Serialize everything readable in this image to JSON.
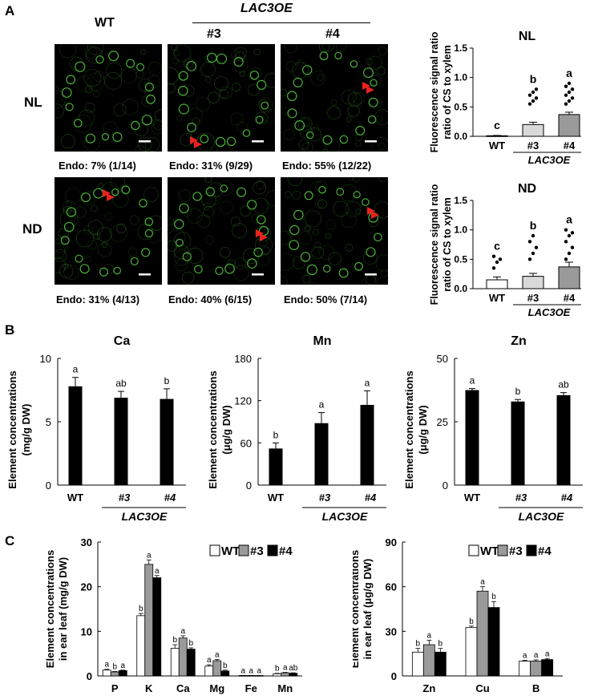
{
  "panel_a": {
    "letter": "A",
    "col_wt": "WT",
    "genotype_group": "LAC3OE",
    "col_3": "#3",
    "col_4": "#4",
    "row_nl": "NL",
    "row_nd": "ND",
    "captions_nl": [
      "Endo: 7% (1/14)",
      "Endo: 31% (9/29)",
      "Endo: 55% (12/22)"
    ],
    "captions_nd": [
      "Endo: 31% (4/13)",
      "Endo: 40% (6/15)",
      "Endo: 50% (7/14)"
    ],
    "image_fill_color": "#000000",
    "ring_color": "#4caf3a",
    "arrow_color": "#e8231f"
  },
  "panel_b": {
    "letter": "B"
  },
  "panel_c": {
    "letter": "C"
  },
  "chart_data": [
    {
      "id": "a-nl",
      "type": "bar",
      "title": "NL",
      "ylabel": "Fluorescence signal ratio of CS to xylem",
      "categories": [
        "WT",
        "#3",
        "#4"
      ],
      "group_label": "LAC3OE",
      "values": [
        0.01,
        0.2,
        0.37
      ],
      "errors": [
        0.005,
        0.04,
        0.04
      ],
      "letters": [
        "c",
        "b",
        "a"
      ],
      "bar_colors": [
        "#ffffff",
        "#d9d9d9",
        "#9a9a9a"
      ],
      "ylim": [
        0,
        1.5
      ],
      "yticks": [
        "0.0",
        "0.5",
        "1.0",
        "1.5"
      ],
      "scatter": [
        [],
        [
          0.55,
          0.6,
          0.65,
          0.7,
          0.75,
          0.8
        ],
        [
          0.55,
          0.6,
          0.65,
          0.7,
          0.75,
          0.8,
          0.85,
          0.9
        ]
      ]
    },
    {
      "id": "a-nd",
      "type": "bar",
      "title": "ND",
      "ylabel": "Fluorescence signal ratio of CS to xylem",
      "categories": [
        "WT",
        "#3",
        "#4"
      ],
      "group_label": "LAC3OE",
      "values": [
        0.15,
        0.21,
        0.37
      ],
      "errors": [
        0.05,
        0.05,
        0.08
      ],
      "letters": [
        "c",
        "b",
        "a"
      ],
      "bar_colors": [
        "#ffffff",
        "#d9d9d9",
        "#9a9a9a"
      ],
      "ylim": [
        0,
        1.5
      ],
      "yticks": [
        "0.0",
        "0.5",
        "1.0",
        "1.5"
      ],
      "scatter": [
        [
          0.35,
          0.45,
          0.5,
          0.55
        ],
        [
          0.5,
          0.6,
          0.7,
          0.8,
          0.9
        ],
        [
          0.5,
          0.6,
          0.7,
          0.8,
          0.9,
          0.95,
          1.0
        ]
      ]
    },
    {
      "id": "b-ca",
      "type": "bar",
      "title": "Ca",
      "ylabel_line1": "Element concentrations",
      "ylabel_line2": "(mg/g DW)",
      "categories": [
        "WT",
        "#3",
        "#4"
      ],
      "group_label": "LAC3OE",
      "values": [
        7.8,
        6.9,
        6.8
      ],
      "errors": [
        0.7,
        0.5,
        0.8
      ],
      "letters": [
        "a",
        "ab",
        "b"
      ],
      "ylim": [
        0,
        10
      ],
      "yticks": [
        "0",
        "5",
        "10"
      ],
      "ytick_vals": [
        0,
        5,
        10
      ]
    },
    {
      "id": "b-mn",
      "type": "bar",
      "title": "Mn",
      "ylabel_line1": "Element concentrations",
      "ylabel_line2": "(μg/g DW)",
      "categories": [
        "WT",
        "#3",
        "#4"
      ],
      "group_label": "LAC3OE",
      "values": [
        52,
        88,
        114
      ],
      "errors": [
        8,
        15,
        20
      ],
      "letters": [
        "b",
        "a",
        "a"
      ],
      "ylim": [
        0,
        180
      ],
      "yticks": [
        "0",
        "60",
        "120",
        "180"
      ],
      "ytick_vals": [
        0,
        60,
        120,
        180
      ]
    },
    {
      "id": "b-zn",
      "type": "bar",
      "title": "Zn",
      "ylabel_line1": "Element concentrations",
      "ylabel_line2": "(μg/g DW)",
      "categories": [
        "WT",
        "#3",
        "#4"
      ],
      "group_label": "LAC3OE",
      "values": [
        37.5,
        33,
        35.5
      ],
      "errors": [
        0.6,
        0.8,
        1.0
      ],
      "letters": [
        "a",
        "b",
        "ab"
      ],
      "ylim": [
        0,
        50
      ],
      "yticks": [
        "0",
        "25",
        "50"
      ],
      "ytick_vals": [
        0,
        25,
        50
      ]
    },
    {
      "id": "c-left",
      "type": "bar",
      "ylabel_line1": "Element concentrations",
      "ylabel_line2": "in ear leaf (mg/g DW)",
      "categories": [
        "P",
        "K",
        "Ca",
        "Mg",
        "Fe",
        "Mn"
      ],
      "series": [
        {
          "name": "WT",
          "color": "#ffffff",
          "values": [
            1.3,
            13.5,
            6.2,
            2.2,
            0.1,
            0.5
          ],
          "errors": [
            0.2,
            0.5,
            0.8,
            0.3,
            0.02,
            0.1
          ],
          "letters": [
            "a",
            "b",
            "b",
            "a",
            "a",
            "b"
          ]
        },
        {
          "name": "#3",
          "color": "#9a9a9a",
          "values": [
            0.9,
            25,
            8.5,
            3.4,
            0.1,
            0.7
          ],
          "errors": [
            0.1,
            1.0,
            0.5,
            0.3,
            0.02,
            0.1
          ],
          "letters": [
            "b",
            "a",
            "a",
            "a",
            "a",
            "a"
          ]
        },
        {
          "name": "#4",
          "color": "#000000",
          "values": [
            1.2,
            22,
            6.0,
            1.1,
            0.1,
            0.6
          ],
          "errors": [
            0.1,
            0.5,
            0.3,
            0.2,
            0.02,
            0.1
          ],
          "letters": [
            "a",
            "a",
            "b",
            "b",
            "a",
            "ab"
          ]
        }
      ],
      "ylim": [
        0,
        30
      ],
      "yticks": [
        "0",
        "10",
        "20",
        "30"
      ],
      "ytick_vals": [
        0,
        10,
        20,
        30
      ]
    },
    {
      "id": "c-right",
      "type": "bar",
      "ylabel_line1": "Element concentrations",
      "ylabel_line2": "in ear leaf (μg/g DW)",
      "categories": [
        "Zn",
        "Cu",
        "B"
      ],
      "series": [
        {
          "name": "WT",
          "color": "#ffffff",
          "values": [
            16,
            32.5,
            10
          ],
          "errors": [
            2.5,
            1,
            0.5
          ],
          "letters": [
            "b",
            "b",
            "a"
          ]
        },
        {
          "name": "#3",
          "color": "#9a9a9a",
          "values": [
            21,
            57,
            10
          ],
          "errors": [
            3,
            3,
            0.8
          ],
          "letters": [
            "a",
            "a",
            "a"
          ]
        },
        {
          "name": "#4",
          "color": "#000000",
          "values": [
            16,
            46,
            11
          ],
          "errors": [
            2.5,
            4,
            0.7
          ],
          "letters": [
            "b",
            "b",
            "a"
          ]
        }
      ],
      "ylim": [
        0,
        90
      ],
      "yticks": [
        "0",
        "30",
        "60",
        "90"
      ],
      "ytick_vals": [
        0,
        30,
        60,
        90
      ]
    }
  ]
}
